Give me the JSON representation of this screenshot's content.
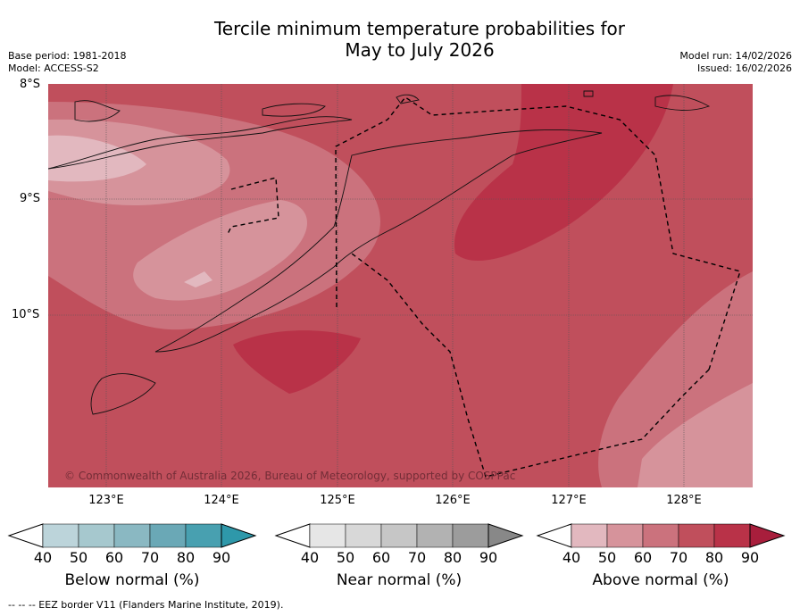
{
  "title_line1": "Tercile minimum temperature probabilities for",
  "title_line2": "May to July 2026",
  "base_period": "Base period: 1981-2018",
  "model": "Model: ACCESS-S2",
  "model_run": "Model run: 14/02/2026",
  "issued": "Issued: 16/02/2026",
  "lat_labels": [
    "8°S",
    "9°S",
    "10°S"
  ],
  "lon_labels": [
    "123°E",
    "124°E",
    "125°E",
    "126°E",
    "127°E",
    "128°E"
  ],
  "copyright": "© Commonwealth of Australia 2026, Bureau of Meteorology, supported by COSPPac",
  "colorbars": [
    {
      "label": "Below normal (%)",
      "ticks": [
        "40",
        "50",
        "60",
        "70",
        "80",
        "90"
      ],
      "colors": [
        "#bcd4da",
        "#a6c8ce",
        "#8ab8c2",
        "#6aa8b6",
        "#48a0b0",
        "#2e98aa"
      ]
    },
    {
      "label": "Near normal (%)",
      "ticks": [
        "40",
        "50",
        "60",
        "70",
        "80",
        "90"
      ],
      "colors": [
        "#e6e6e6",
        "#d8d8d8",
        "#c6c6c6",
        "#b2b2b2",
        "#9c9c9c",
        "#888888"
      ]
    },
    {
      "label": "Above normal (%)",
      "ticks": [
        "40",
        "50",
        "60",
        "70",
        "80",
        "90"
      ],
      "colors": [
        "#e2b8bf",
        "#d6939b",
        "#cb727d",
        "#c04f5c",
        "#b93248",
        "#a81e3c"
      ]
    }
  ],
  "footnote": "--  --  -- EEZ border V11 (Flanders Marine Institute, 2019)."
}
